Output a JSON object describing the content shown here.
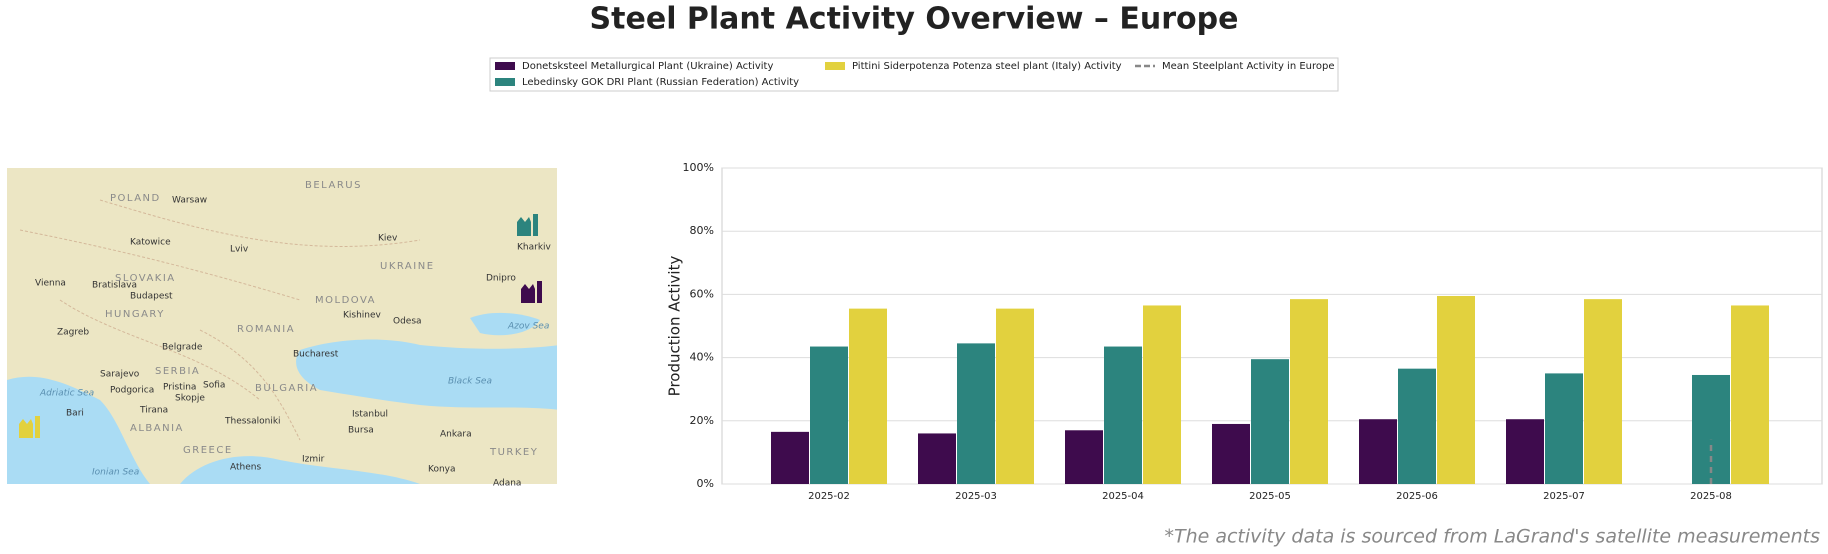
{
  "chart_data": {
    "type": "bar",
    "title": "Steel Plant Activity Overview – Europe",
    "y_label": "Production Activity",
    "footnote": "*The activity data is sourced from LaGrand's satellite measurements",
    "categories": [
      "2025-02",
      "2025-03",
      "2025-04",
      "2025-05",
      "2025-06",
      "2025-07",
      "2025-08"
    ],
    "series": [
      {
        "name": "Donetsksteel Metallurgical Plant (Ukraine) Activity",
        "color": "#3e0b4d",
        "values": [
          16.5,
          16,
          17,
          19,
          20.5,
          20.5,
          null
        ]
      },
      {
        "name": "Lebedinsky GOK DRI Plant (Russian Federation) Activity",
        "color": "#2c847e",
        "values": [
          43.5,
          44.5,
          43.5,
          39.5,
          36.5,
          35,
          34.5
        ]
      },
      {
        "name": "Pittini Siderpotenza Potenza steel plant (Italy) Activity",
        "color": "#e2d13e",
        "values": [
          55.5,
          55.5,
          56.5,
          58.5,
          59.5,
          58.5,
          56.5
        ]
      },
      {
        "name": "Mean Steelplant Activity in Europe",
        "color": "#888888",
        "type": "line",
        "values": [
          null,
          null,
          null,
          null,
          null,
          null,
          14
        ]
      }
    ],
    "ylim": [
      0,
      100
    ],
    "yticks": [
      {
        "value": 0,
        "label": "0%"
      },
      {
        "value": 20,
        "label": "20%"
      },
      {
        "value": 40,
        "label": "40%"
      },
      {
        "value": 60,
        "label": "60%"
      },
      {
        "value": 80,
        "label": "80%"
      },
      {
        "value": 100,
        "label": "100%"
      }
    ],
    "grid": true,
    "legend": "top"
  },
  "map": {
    "labels": [
      "POLAND",
      "Warsaw",
      "BELARUS",
      "Katowice",
      "Lviv",
      "Kiev",
      "Kharkiv",
      "UKRAINE",
      "Vienna",
      "Bratislava",
      "SLOVAKIA",
      "Budapest",
      "HUNGARY",
      "Dnipro",
      "MOLDOVA",
      "Kishinev",
      "Odesa",
      "ROMANIA",
      "Zagreb",
      "Belgrade",
      "Bucharest",
      "SERBIA",
      "Sarajevo",
      "Podgorica",
      "Pristina",
      "Sofia",
      "BULGARIA",
      "Skopje",
      "Azov Sea",
      "Black Sea",
      "Tirana",
      "Thessaloniki",
      "Istanbul",
      "Bursa",
      "Ankara",
      "GREECE",
      "TURKEY",
      "Athens",
      "Izmir",
      "Konya",
      "Adana",
      "Bari",
      "Adriatic Sea",
      "Ionian Sea",
      "ALBANIA"
    ]
  }
}
